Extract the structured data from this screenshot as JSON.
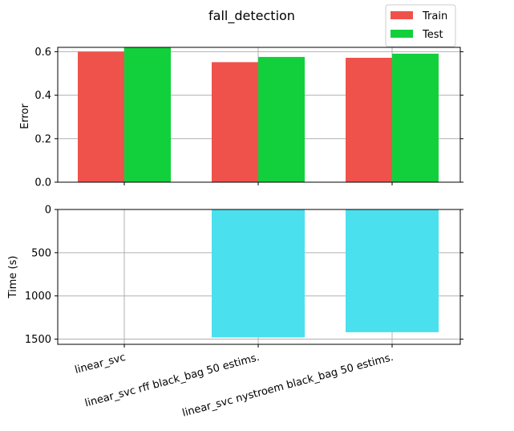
{
  "chart_data": {
    "title": "fall_detection",
    "categories": [
      "linear_svc",
      "linear_svc rff black_bag 50 estims.",
      "linear_svc nystroem black_bag 50 estims."
    ],
    "panels": [
      {
        "type": "bar",
        "ylabel": "Error",
        "ylim": [
          0,
          0.62
        ],
        "yticks": [
          "0.0",
          "0.2",
          "0.4",
          "0.6"
        ],
        "ytick_values": [
          0.0,
          0.2,
          0.4,
          0.6
        ],
        "grid": true,
        "legend": "top-right",
        "series": [
          {
            "name": "Train",
            "color": "#ef524a",
            "values": [
              0.6,
              0.552,
              0.572
            ]
          },
          {
            "name": "Test",
            "color": "#12d03c",
            "values": [
              0.619,
              0.576,
              0.591
            ]
          }
        ]
      },
      {
        "type": "bar",
        "ylabel": "Time (s)",
        "ylim": [
          0,
          1560
        ],
        "y_inverted": true,
        "yticks": [
          "0",
          "500",
          "1000",
          "1500"
        ],
        "ytick_values": [
          0,
          500,
          1000,
          1500
        ],
        "grid": true,
        "series": [
          {
            "color": "#4ae0ee",
            "values": [
              3,
              1480,
              1420
            ]
          }
        ]
      }
    ]
  }
}
